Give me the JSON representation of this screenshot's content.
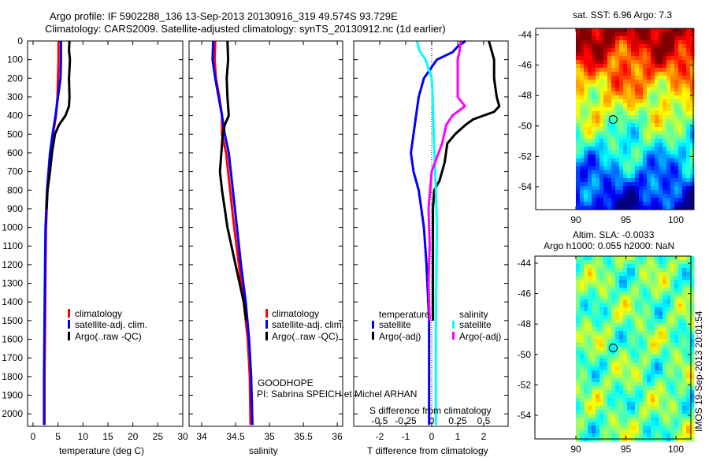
{
  "title_line1": "Argo profile: IF 5902288_136 13-Sep-2013 20130916_319 49.574S 93.729E",
  "title_line2": "Climatology: CARS2009. Satellite-adjusted climatology: synTS_20130912.nc (1d earlier)",
  "project_label": "GOODHOPE",
  "pi_label": "PI: Sabrina SPEICH et Michel ARHAN",
  "timestamp": "IMOS 19-Sep-2013 20:01:54",
  "colors": {
    "climatology": "#ff0000",
    "satellite": "#0000ff",
    "argo": "#000000",
    "salinity_satellite": "#00ffff",
    "salinity_argo": "#ff00ff"
  },
  "chart_data": [
    {
      "type": "line",
      "title": "",
      "xlabel": "temperature (deg C)",
      "ylabel": "",
      "xlim": [
        -1.1,
        30
      ],
      "ylim": [
        2067,
        0
      ],
      "xticks": [
        0,
        5,
        10,
        15,
        20,
        25,
        30
      ],
      "xtick_labels": [
        "0",
        "5",
        "10",
        "15",
        "20",
        "25",
        "30"
      ],
      "yticks": [
        0,
        100,
        200,
        300,
        400,
        500,
        600,
        700,
        800,
        900,
        1000,
        1100,
        1200,
        1300,
        1400,
        1500,
        1600,
        1700,
        1800,
        1900,
        2000
      ],
      "ytick_labels": [
        "0",
        "100",
        "200",
        "300",
        "400",
        "500",
        "600",
        "700",
        "800",
        "900",
        "1000",
        "1100",
        "1200",
        "1300",
        "1400",
        "1500",
        "1600",
        "1700",
        "1800",
        "1900",
        "2000"
      ],
      "legend": [
        "climatology",
        "satellite-adj. clim.",
        "Argo(..raw -QC)"
      ],
      "series": [
        {
          "name": "climatology",
          "color": "#ff0000",
          "depth": [
            0,
            100,
            200,
            300,
            400,
            500,
            600,
            700,
            800,
            1000,
            1200,
            1500,
            1800,
            2060
          ],
          "values": [
            5.1,
            5.1,
            5.0,
            4.9,
            4.6,
            4.0,
            3.5,
            3.2,
            2.9,
            2.6,
            2.5,
            2.4,
            2.3,
            2.3
          ]
        },
        {
          "name": "satellite-adj. clim.",
          "color": "#0000ff",
          "depth": [
            0,
            100,
            200,
            300,
            400,
            500,
            600,
            700,
            800,
            1000,
            1200,
            1500,
            1800,
            2060
          ],
          "values": [
            5.6,
            5.6,
            5.5,
            5.0,
            4.5,
            3.9,
            3.4,
            3.1,
            2.8,
            2.5,
            2.4,
            2.3,
            2.2,
            2.2
          ]
        },
        {
          "name": "Argo(..raw -QC)",
          "color": "#000000",
          "depth": [
            0,
            50,
            100,
            200,
            300,
            350,
            400,
            450,
            500,
            600,
            700,
            800,
            900
          ],
          "values": [
            7.3,
            7.2,
            7.4,
            7.2,
            7.3,
            7.2,
            6.5,
            5.2,
            4.4,
            3.8,
            3.4,
            2.9,
            2.7
          ]
        }
      ]
    },
    {
      "type": "line",
      "xlabel": "salinity",
      "xlim": [
        33.814,
        36.08
      ],
      "ylim": [
        2067,
        0
      ],
      "xticks": [
        34,
        34.5,
        35,
        35.5,
        36
      ],
      "xtick_labels": [
        "34",
        "34.5",
        "35",
        "35.5",
        "36"
      ],
      "legend": [
        "climatology",
        "satellite-adj. clim.",
        "Argo(..raw -QC)"
      ],
      "series": [
        {
          "name": "climatology",
          "color": "#ff0000",
          "depth": [
            0,
            100,
            200,
            300,
            400,
            500,
            600,
            800,
            1000,
            1200,
            1400,
            1600,
            1800,
            2060
          ],
          "values": [
            34.2,
            34.19,
            34.21,
            34.26,
            34.3,
            34.3,
            34.36,
            34.42,
            34.48,
            34.55,
            34.62,
            34.68,
            34.71,
            34.72
          ]
        },
        {
          "name": "satellite-adj. clim.",
          "color": "#0000ff",
          "depth": [
            0,
            100,
            200,
            300,
            400,
            500,
            600,
            800,
            1000,
            1200,
            1400,
            1600,
            1800,
            2060
          ],
          "values": [
            34.17,
            34.16,
            34.2,
            34.25,
            34.3,
            34.34,
            34.4,
            34.46,
            34.52,
            34.58,
            34.65,
            34.7,
            34.73,
            34.75
          ]
        },
        {
          "name": "Argo(..raw -QC)",
          "color": "#000000",
          "depth": [
            0,
            100,
            200,
            300,
            400,
            450,
            500,
            600,
            700,
            800,
            900,
            1000,
            1200,
            1400,
            1500
          ],
          "values": [
            34.38,
            34.39,
            34.37,
            34.38,
            34.4,
            34.34,
            34.31,
            34.29,
            34.27,
            34.3,
            34.34,
            34.38,
            34.5,
            34.62,
            34.66
          ]
        }
      ]
    },
    {
      "type": "line",
      "xlabel": "T difference from climatology",
      "xlim": [
        -3,
        2.94
      ],
      "ylim": [
        2067,
        0
      ],
      "xticks": [
        -2,
        -1,
        0,
        1,
        2
      ],
      "xtick_labels": [
        "-2",
        "-1",
        "0",
        "1",
        "2"
      ],
      "secondary_xlabel": "S difference from climatology",
      "secondary_xticks": [
        -0.5,
        -0.25,
        0,
        0.25,
        0.5
      ],
      "secondary_xtick_labels": [
        "-0.5",
        "-0.25",
        "0",
        "0.25",
        "0.5"
      ],
      "legend_headers": [
        "temperature",
        "salinity"
      ],
      "legend": [
        "satellite",
        "Argo(-adj)",
        "satellite",
        "Argo(-adj)"
      ],
      "series": [
        {
          "name": "temperature satellite",
          "color": "#0000ff",
          "units": "T",
          "depth": [
            0,
            30,
            60,
            100,
            200,
            300,
            400,
            500,
            600,
            700,
            800,
            1000,
            1200,
            1500,
            2060
          ],
          "values": [
            1.3,
            1.0,
            0.8,
            0.2,
            -0.3,
            -0.5,
            -0.6,
            -0.7,
            -0.8,
            -0.7,
            -0.5,
            -0.3,
            -0.2,
            -0.1,
            -0.1
          ]
        },
        {
          "name": "temperature Argo(-adj)",
          "color": "#000000",
          "units": "T",
          "depth": [
            0,
            50,
            100,
            200,
            300,
            350,
            380,
            420,
            450,
            500,
            550,
            650,
            750,
            800,
            900,
            1000,
            1200,
            1500
          ],
          "values": [
            2.2,
            2.3,
            2.4,
            2.4,
            2.5,
            2.6,
            2.4,
            1.6,
            1.3,
            0.9,
            0.6,
            0.5,
            0.3,
            0.1,
            0.05,
            0.05,
            0.05,
            0.05
          ]
        },
        {
          "name": "salinity satellite",
          "color": "#00ffff",
          "units": "S",
          "depth": [
            0,
            50,
            100,
            200,
            300,
            500,
            800,
            1000,
            1500,
            2060
          ],
          "values": [
            -0.14,
            -0.12,
            -0.06,
            0.0,
            0.01,
            0.02,
            0.04,
            0.05,
            0.04,
            0.04
          ]
        },
        {
          "name": "salinity Argo(-adj)",
          "color": "#ff00ff",
          "units": "S",
          "depth": [
            0,
            50,
            100,
            200,
            300,
            350,
            400,
            450,
            550,
            700,
            900,
            1100,
            1300,
            1500
          ],
          "values": [
            0.28,
            0.27,
            0.25,
            0.25,
            0.25,
            0.32,
            0.2,
            0.14,
            0.1,
            0.0,
            -0.03,
            -0.02,
            -0.03,
            -0.02
          ]
        }
      ]
    },
    {
      "type": "heatmap",
      "title": "sat. SST: 6.96 Argo: 7.3",
      "xlim": [
        86,
        101.7
      ],
      "ylim": [
        -55.5,
        -43.6
      ],
      "xticks": [
        90,
        95,
        100
      ],
      "xtick_labels": [
        "90",
        "95",
        "100"
      ],
      "yticks": [
        -44,
        -46,
        -48,
        -50,
        -52,
        -54
      ],
      "ytick_labels": [
        "-44",
        "-46",
        "-48",
        "-50",
        "-52",
        "-54"
      ],
      "data_lon_range": [
        90,
        101.7
      ],
      "argo_position": {
        "lon": 93.729,
        "lat": -49.574
      }
    },
    {
      "type": "heatmap",
      "title": "Altim. SLA: -0.0033",
      "subtitle": "Argo h1000: 0.055 h2000: NaN",
      "xlim": [
        86,
        101.7
      ],
      "ylim": [
        -55.5,
        -43.5
      ],
      "xticks": [
        90,
        95,
        100
      ],
      "xtick_labels": [
        "90",
        "95",
        "100"
      ],
      "yticks": [
        -44,
        -46,
        -48,
        -50,
        -52,
        -54
      ],
      "ytick_labels": [
        "-44",
        "-46",
        "-48",
        "-50",
        "-52",
        "-54"
      ],
      "data_lon_range": [
        90,
        101.7
      ],
      "argo_position": {
        "lon": 93.729,
        "lat": -49.574
      }
    }
  ]
}
